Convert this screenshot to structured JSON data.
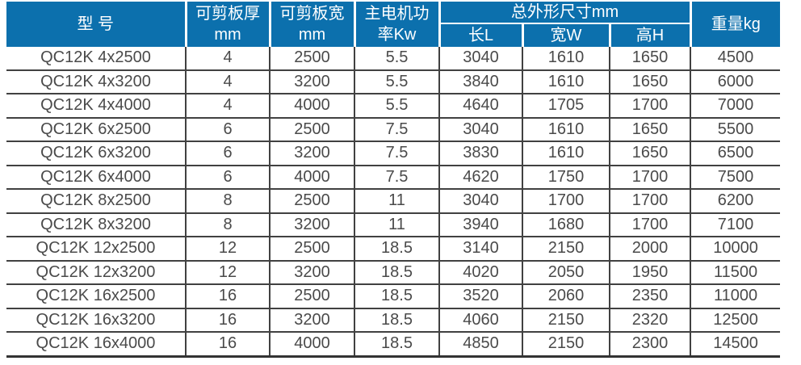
{
  "colors": {
    "header_bg": "#0c70ad",
    "header_text": "#ffffff",
    "grid_line": "#414141",
    "body_text": "#4a4a4a"
  },
  "table": {
    "header": {
      "model": "型 号",
      "thickness": [
        "可剪板厚",
        "mm"
      ],
      "width": [
        "可剪板宽",
        "mm"
      ],
      "power": [
        "主电机功",
        "率Kw"
      ],
      "dims_group": "总外形尺寸mm",
      "dims": [
        "长L",
        "宽W",
        "高H"
      ],
      "weight": "重量kg"
    },
    "column_keys": [
      "model",
      "thickness-mm",
      "width-mm",
      "power-kw",
      "length-l",
      "width-w",
      "height-h",
      "weight-kg"
    ],
    "rows": [
      [
        "QC12K 4x2500",
        "4",
        "2500",
        "5.5",
        "3040",
        "1610",
        "1650",
        "4500"
      ],
      [
        "QC12K 4x3200",
        "4",
        "3200",
        "5.5",
        "3840",
        "1610",
        "1650",
        "6000"
      ],
      [
        "QC12K 4x4000",
        "4",
        "4000",
        "5.5",
        "4640",
        "1705",
        "1700",
        "7000"
      ],
      [
        "QC12K 6x2500",
        "6",
        "2500",
        "7.5",
        "3040",
        "1610",
        "1650",
        "5500"
      ],
      [
        "QC12K 6x3200",
        "6",
        "3200",
        "7.5",
        "3830",
        "1610",
        "1650",
        "6500"
      ],
      [
        "QC12K 6x4000",
        "6",
        "4000",
        "7.5",
        "4620",
        "1750",
        "1700",
        "7500"
      ],
      [
        "QC12K 8x2500",
        "8",
        "2500",
        "11",
        "3040",
        "1700",
        "1700",
        "6200"
      ],
      [
        "QC12K 8x3200",
        "8",
        "3200",
        "11",
        "3940",
        "1680",
        "1700",
        "7100"
      ],
      [
        "QC12K 12x2500",
        "12",
        "2500",
        "18.5",
        "3140",
        "2150",
        "2000",
        "10000"
      ],
      [
        "QC12K 12x3200",
        "12",
        "3200",
        "18.5",
        "4020",
        "2050",
        "1950",
        "11500"
      ],
      [
        "QC12K 16x2500",
        "16",
        "2500",
        "18.5",
        "3520",
        "2060",
        "2350",
        "11000"
      ],
      [
        "QC12K 16x3200",
        "16",
        "3200",
        "18.5",
        "4060",
        "2150",
        "2320",
        "12500"
      ],
      [
        "QC12K 16x4000",
        "16",
        "4000",
        "18.5",
        "4850",
        "2150",
        "2300",
        "14500"
      ]
    ]
  }
}
